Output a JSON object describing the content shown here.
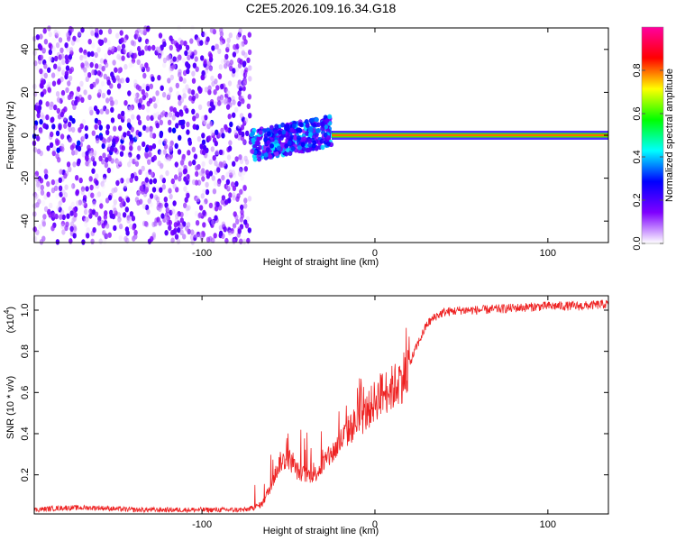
{
  "chart_data": [
    {
      "type": "heatmap",
      "title": "C2E5.2026.109.16.34.G18",
      "xlabel": "Height of straight line (km)",
      "ylabel": "Frequency (Hz)",
      "xlim": [
        -197,
        135
      ],
      "ylim": [
        -50,
        50
      ],
      "xticks": [
        -100,
        0,
        100
      ],
      "xtick_labels": [
        "-100",
        "0",
        "100"
      ],
      "yticks": [
        -40,
        -20,
        0,
        20,
        40
      ],
      "ytick_labels": [
        "-40",
        "-20",
        "0",
        "20",
        "40"
      ],
      "colorbar": {
        "label": "Normalized spectral amplitude",
        "range": [
          0,
          1
        ],
        "ticks": [
          0,
          0.2,
          0.4,
          0.6,
          0.8
        ],
        "tick_labels": [
          "0.0",
          "0.2",
          "0.4",
          "0.6",
          "0.8"
        ],
        "colors": [
          "#ffffff",
          "#7f00ff",
          "#0000ff",
          "#00ffff",
          "#00ff00",
          "#ffff00",
          "#ff0000",
          "#ff00a0"
        ]
      },
      "features": {
        "noise_region_x": [
          -197,
          -72
        ],
        "noise_amplitude": 0.15,
        "transition_region_x": [
          -72,
          -25
        ],
        "carrier_start_x": -25,
        "carrier_freq_hz": 0,
        "carrier_amplitude": 0.8
      }
    },
    {
      "type": "line",
      "title": "",
      "xlabel": "Height of straight line (km)",
      "ylabel": "SNR (10 * v/v)",
      "y_multiplier_label": "(x10",
      "y_multiplier_exp": "4",
      "xlim": [
        -197,
        135
      ],
      "ylim": [
        0.01,
        1.07
      ],
      "xticks": [
        -100,
        0,
        100
      ],
      "xtick_labels": [
        "-100",
        "0",
        "100"
      ],
      "yticks": [
        0.2,
        0.4,
        0.6,
        0.8,
        1.0
      ],
      "ytick_labels": [
        "0.2",
        "0.4",
        "0.6",
        "0.8",
        "1.0"
      ],
      "color": "#ee2222",
      "series": [
        {
          "name": "SNR",
          "x": [
            -197,
            -180,
            -160,
            -140,
            -120,
            -100,
            -80,
            -75,
            -70,
            -65,
            -60,
            -55,
            -50,
            -45,
            -40,
            -35,
            -30,
            -25,
            -20,
            -15,
            -10,
            -5,
            0,
            5,
            10,
            15,
            20,
            25,
            30,
            35,
            40,
            50,
            60,
            80,
            100,
            120,
            135
          ],
          "y": [
            0.03,
            0.04,
            0.04,
            0.03,
            0.03,
            0.03,
            0.03,
            0.03,
            0.04,
            0.06,
            0.15,
            0.26,
            0.28,
            0.22,
            0.2,
            0.2,
            0.25,
            0.3,
            0.36,
            0.42,
            0.46,
            0.5,
            0.56,
            0.6,
            0.62,
            0.66,
            0.74,
            0.84,
            0.93,
            0.97,
            0.99,
            1.0,
            1.0,
            1.01,
            1.02,
            1.02,
            1.03
          ]
        }
      ]
    }
  ]
}
